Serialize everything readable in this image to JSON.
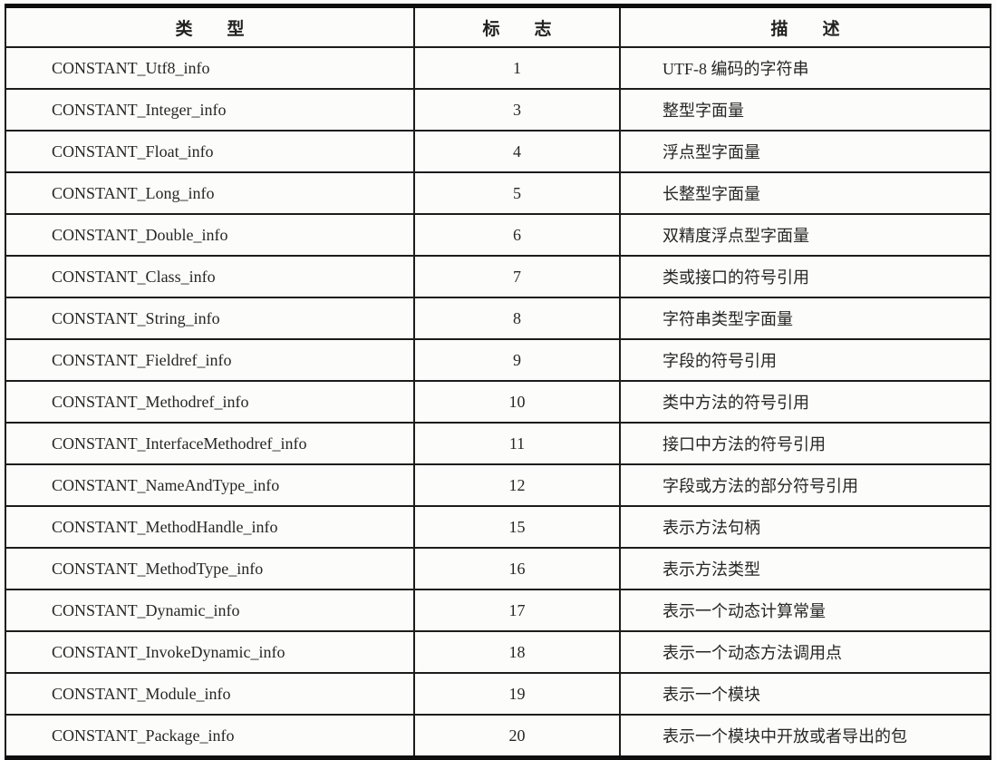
{
  "colors": {
    "border": "#1c1c1c",
    "thick_rule": "#0e0e0e",
    "text": "#262626",
    "background": "#fcfcfa"
  },
  "table": {
    "columns": [
      {
        "key": "type",
        "label": "类　　型"
      },
      {
        "key": "tag",
        "label": "标　　志"
      },
      {
        "key": "desc",
        "label": "描　　述"
      }
    ],
    "rows": [
      {
        "type": "CONSTANT_Utf8_info",
        "tag": "1",
        "desc": "UTF-8 编码的字符串"
      },
      {
        "type": "CONSTANT_Integer_info",
        "tag": "3",
        "desc": "整型字面量"
      },
      {
        "type": "CONSTANT_Float_info",
        "tag": "4",
        "desc": "浮点型字面量"
      },
      {
        "type": "CONSTANT_Long_info",
        "tag": "5",
        "desc": "长整型字面量"
      },
      {
        "type": "CONSTANT_Double_info",
        "tag": "6",
        "desc": "双精度浮点型字面量"
      },
      {
        "type": "CONSTANT_Class_info",
        "tag": "7",
        "desc": "类或接口的符号引用"
      },
      {
        "type": "CONSTANT_String_info",
        "tag": "8",
        "desc": "字符串类型字面量"
      },
      {
        "type": "CONSTANT_Fieldref_info",
        "tag": "9",
        "desc": "字段的符号引用"
      },
      {
        "type": "CONSTANT_Methodref_info",
        "tag": "10",
        "desc": "类中方法的符号引用"
      },
      {
        "type": "CONSTANT_InterfaceMethodref_info",
        "tag": "11",
        "desc": "接口中方法的符号引用"
      },
      {
        "type": "CONSTANT_NameAndType_info",
        "tag": "12",
        "desc": "字段或方法的部分符号引用"
      },
      {
        "type": "CONSTANT_MethodHandle_info",
        "tag": "15",
        "desc": "表示方法句柄"
      },
      {
        "type": "CONSTANT_MethodType_info",
        "tag": "16",
        "desc": "表示方法类型"
      },
      {
        "type": "CONSTANT_Dynamic_info",
        "tag": "17",
        "desc": "表示一个动态计算常量"
      },
      {
        "type": "CONSTANT_InvokeDynamic_info",
        "tag": "18",
        "desc": "表示一个动态方法调用点"
      },
      {
        "type": "CONSTANT_Module_info",
        "tag": "19",
        "desc": "表示一个模块"
      },
      {
        "type": "CONSTANT_Package_info",
        "tag": "20",
        "desc": "表示一个模块中开放或者导出的包"
      }
    ]
  }
}
